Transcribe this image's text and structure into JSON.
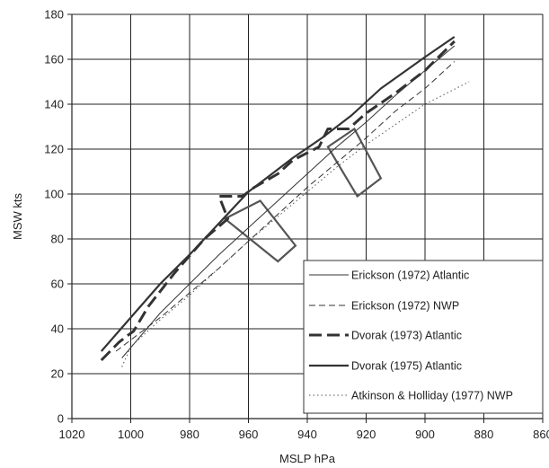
{
  "chart_data": {
    "type": "line",
    "title": "",
    "xlabel": "MSLP hPa",
    "ylabel": "MSW kts",
    "xlim": [
      1020,
      860
    ],
    "x_reversed": true,
    "ylim": [
      0,
      180
    ],
    "xticks": [
      1020,
      1000,
      980,
      960,
      940,
      920,
      900,
      880,
      860
    ],
    "yticks": [
      0,
      20,
      40,
      60,
      80,
      100,
      120,
      140,
      160,
      180
    ],
    "grid": true,
    "legend_placement": "bottom-right",
    "series": [
      {
        "name": "Erickson (1972) Atlantic",
        "style": "thin-solid",
        "color": "#333333",
        "points": [
          [
            1003,
            27
          ],
          [
            990,
            47
          ],
          [
            980,
            60
          ],
          [
            970,
            73
          ],
          [
            960,
            85
          ],
          [
            950,
            97
          ],
          [
            940,
            109
          ],
          [
            930,
            121
          ],
          [
            920,
            132
          ],
          [
            910,
            144
          ],
          [
            900,
            155
          ],
          [
            890,
            166
          ]
        ]
      },
      {
        "name": "Erickson (1972) NWP",
        "style": "dashed",
        "color": "#333333",
        "points": [
          [
            1005,
            30
          ],
          [
            990,
            45
          ],
          [
            980,
            56
          ],
          [
            970,
            67
          ],
          [
            960,
            79
          ],
          [
            950,
            91
          ],
          [
            940,
            103
          ],
          [
            930,
            114
          ],
          [
            920,
            125
          ],
          [
            910,
            137
          ],
          [
            900,
            147
          ],
          [
            890,
            159
          ]
        ]
      },
      {
        "name": "Dvorak (1973) Atlantic",
        "style": "long-dashed",
        "color": "#333333",
        "points": [
          [
            1010,
            26
          ],
          [
            1004,
            34
          ],
          [
            999,
            39
          ],
          [
            994,
            50
          ],
          [
            985,
            65
          ],
          [
            975,
            80
          ],
          [
            967,
            89
          ],
          [
            970,
            99
          ],
          [
            962,
            99
          ],
          [
            958,
            103
          ],
          [
            950,
            109
          ],
          [
            945,
            115
          ],
          [
            936,
            121
          ],
          [
            933,
            129
          ],
          [
            926,
            129
          ],
          [
            920,
            136
          ],
          [
            910,
            145
          ],
          [
            900,
            155
          ],
          [
            890,
            168
          ]
        ]
      },
      {
        "name": "Dvorak (1975) Atlantic",
        "style": "thick-solid",
        "color": "#333333",
        "points": [
          [
            1010,
            30
          ],
          [
            1000,
            45
          ],
          [
            990,
            60
          ],
          [
            980,
            73
          ],
          [
            970,
            87
          ],
          [
            960,
            101
          ],
          [
            950,
            111
          ],
          [
            945,
            116
          ],
          [
            935,
            125
          ],
          [
            925,
            135
          ],
          [
            915,
            147
          ],
          [
            900,
            161
          ],
          [
            890,
            170
          ]
        ]
      },
      {
        "name": "Atkinson & Holliday (1977) NWP",
        "style": "dotted",
        "color": "#555555",
        "points": [
          [
            1003,
            23
          ],
          [
            1000,
            32
          ],
          [
            990,
            44
          ],
          [
            980,
            55
          ],
          [
            970,
            67
          ],
          [
            960,
            79
          ],
          [
            950,
            90
          ],
          [
            940,
            101
          ],
          [
            930,
            112
          ],
          [
            920,
            122
          ],
          [
            910,
            131
          ],
          [
            900,
            140
          ],
          [
            885,
            150
          ]
        ]
      }
    ],
    "boxes": [
      {
        "corners": [
          [
            968,
            89
          ],
          [
            956,
            97
          ],
          [
            944,
            77
          ],
          [
            950,
            70
          ]
        ]
      },
      {
        "corners": [
          [
            933,
            121
          ],
          [
            924,
            129
          ],
          [
            915,
            107
          ],
          [
            923,
            99
          ]
        ]
      }
    ]
  }
}
